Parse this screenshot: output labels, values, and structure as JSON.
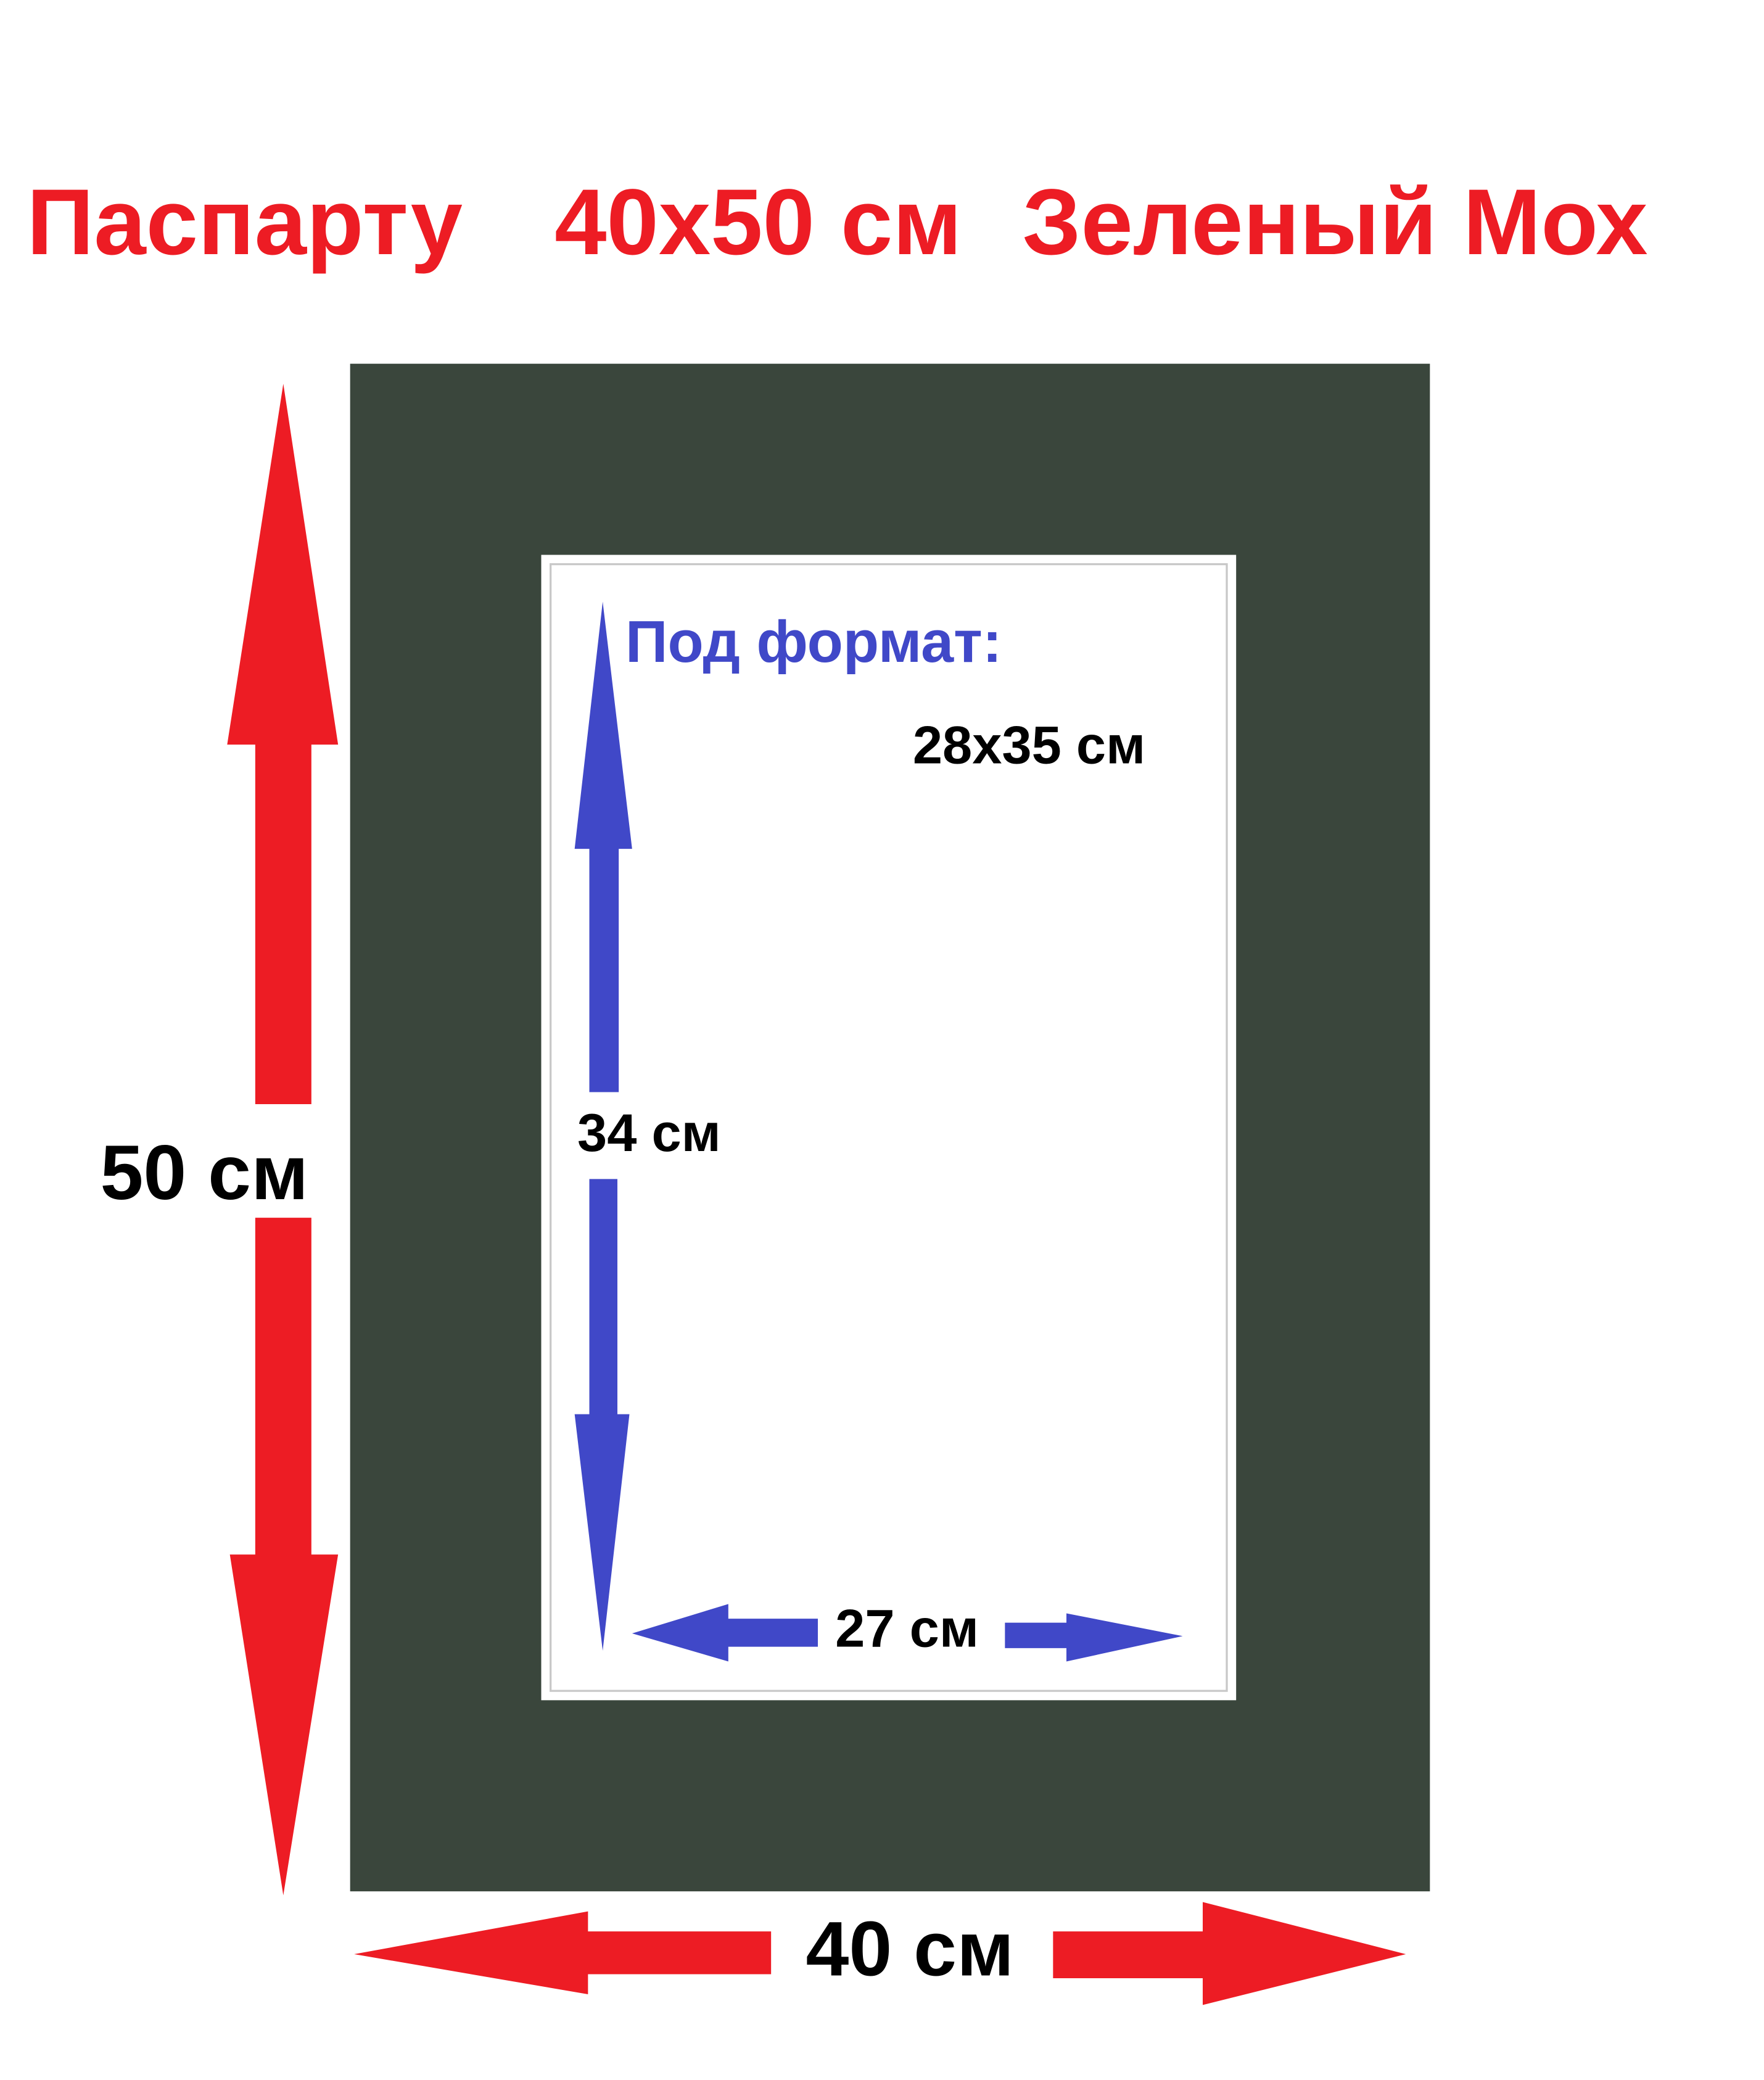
{
  "title": {
    "word": "Паспарту",
    "size": "40x50 см",
    "color_name": "Зеленый Мох"
  },
  "dimensions": {
    "outer_height": "50 см",
    "outer_width": "40 см",
    "window_height": "34 см",
    "window_width": "27 см"
  },
  "format": {
    "label": "Под формат:",
    "value": "28x35 см"
  },
  "colors": {
    "title_red": "#ed1c24",
    "mat_green": "#3a463c",
    "arrow_blue": "#4048c8",
    "text_black": "#000000"
  }
}
